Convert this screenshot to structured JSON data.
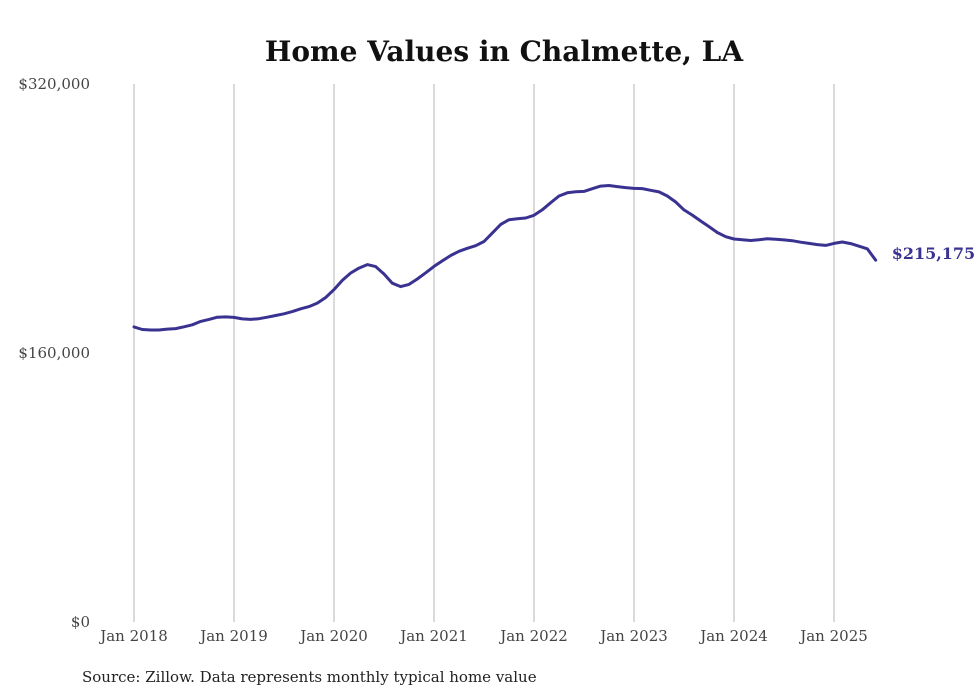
{
  "chart_data": {
    "type": "line",
    "title": "Home Values in Chalmette, LA",
    "xlabel": "",
    "ylabel": "",
    "ylim": [
      0,
      320000
    ],
    "y_ticks": [
      0,
      160000,
      320000
    ],
    "y_tick_labels": [
      "$0",
      "$160,000",
      "$320,000"
    ],
    "x_ticks": [
      "2018-01",
      "2019-01",
      "2020-01",
      "2021-01",
      "2022-01",
      "2023-01",
      "2024-01",
      "2025-01"
    ],
    "x_tick_labels": [
      "Jan 2018",
      "Jan 2019",
      "Jan 2020",
      "Jan 2021",
      "Jan 2022",
      "Jan 2023",
      "Jan 2024",
      "Jan 2025"
    ],
    "grid": "vertical",
    "line_color": "#3a3291",
    "series": [
      {
        "x": [
          "2018-01",
          "2018-02",
          "2018-03",
          "2018-04",
          "2018-05",
          "2018-06",
          "2018-07",
          "2018-08",
          "2018-09",
          "2018-10",
          "2018-11",
          "2018-12",
          "2019-01",
          "2019-02",
          "2019-03",
          "2019-04",
          "2019-05",
          "2019-06",
          "2019-07",
          "2019-08",
          "2019-09",
          "2019-10",
          "2019-11",
          "2019-12",
          "2020-01",
          "2020-02",
          "2020-03",
          "2020-04",
          "2020-05",
          "2020-06",
          "2020-07",
          "2020-08",
          "2020-09",
          "2020-10",
          "2020-11",
          "2020-12",
          "2021-01",
          "2021-02",
          "2021-03",
          "2021-04",
          "2021-05",
          "2021-06",
          "2021-07",
          "2021-08",
          "2021-09",
          "2021-10",
          "2021-11",
          "2021-12",
          "2022-01",
          "2022-02",
          "2022-03",
          "2022-04",
          "2022-05",
          "2022-06",
          "2022-07",
          "2022-08",
          "2022-09",
          "2022-10",
          "2022-11",
          "2022-12",
          "2023-01",
          "2023-02",
          "2023-03",
          "2023-04",
          "2023-05",
          "2023-06",
          "2023-07",
          "2023-08",
          "2023-09",
          "2023-10",
          "2023-11",
          "2023-12",
          "2024-01",
          "2024-02",
          "2024-03",
          "2024-04",
          "2024-05",
          "2024-06",
          "2024-07",
          "2024-08",
          "2024-09",
          "2024-10",
          "2024-11",
          "2024-12",
          "2025-01",
          "2025-02",
          "2025-03",
          "2025-04",
          "2025-05",
          "2025-06"
        ],
        "values": [
          175500,
          174000,
          173700,
          173700,
          174200,
          174500,
          175600,
          176800,
          178800,
          180000,
          181300,
          181500,
          181200,
          180300,
          180000,
          180400,
          181300,
          182300,
          183300,
          184600,
          186300,
          187600,
          189700,
          193000,
          197700,
          203200,
          207600,
          210500,
          212600,
          211400,
          207000,
          201500,
          199500,
          200800,
          204000,
          207700,
          211500,
          214800,
          218000,
          220500,
          222300,
          223800,
          226300,
          231300,
          236500,
          239300,
          239800,
          240300,
          241900,
          245200,
          249400,
          253400,
          255300,
          255900,
          256100,
          257700,
          259300,
          259600,
          259000,
          258400,
          257900,
          257800,
          256800,
          255800,
          253400,
          249800,
          245100,
          242000,
          238500,
          235200,
          231700,
          229200,
          227800,
          227400,
          226900,
          227400,
          227900,
          227700,
          227300,
          226800,
          225900,
          225200,
          224500,
          224000,
          225200,
          226000,
          225100,
          223500,
          222000,
          215175
        ]
      }
    ],
    "end_label": "$215,175"
  },
  "source_note": "Source: Zillow. Data represents monthly typical home value"
}
